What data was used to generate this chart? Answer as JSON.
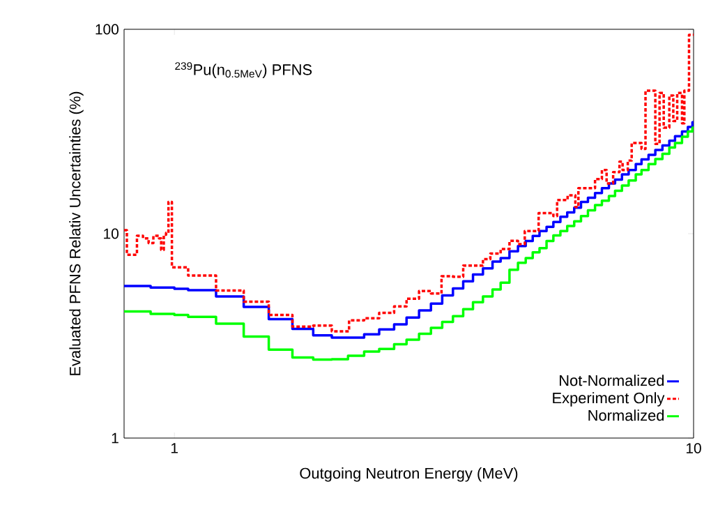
{
  "chart_data": {
    "type": "step",
    "xlabel": "Outgoing Neutron Energy (MeV)",
    "ylabel": "Evaluated PFNS Relativ Uncertainties (%)",
    "annotations": [
      "$^{239}$Pu(n$_{0.5MeV}$) PFNS"
    ],
    "log": "xy",
    "xlim": [
      0.8,
      10
    ],
    "ylim": [
      1,
      100
    ],
    "xticks": [
      1,
      10
    ],
    "yticks": [
      1,
      10,
      100
    ],
    "grid": false,
    "legend": "bottom right",
    "marker": "none",
    "series": [
      {
        "name": "Not-Normalized",
        "color": "#0000ff",
        "line_style": "solid",
        "x": [
          0.8,
          0.9,
          1.0,
          1.063,
          1.203,
          1.36,
          1.52,
          1.688,
          1.851,
          2.01,
          2.32,
          2.48,
          2.65,
          2.8,
          2.96,
          3.12,
          3.28,
          3.44,
          3.6,
          3.76,
          3.93,
          4.1,
          4.25,
          4.42,
          4.59,
          4.75,
          4.9,
          5.05,
          5.21,
          5.37,
          5.54,
          5.71,
          5.89,
          6.07,
          6.26,
          6.46,
          6.66,
          6.87,
          7.06,
          7.28,
          7.5,
          7.74,
          7.94,
          8.19,
          8.44,
          8.71,
          8.98,
          9.21,
          9.5,
          9.75,
          9.95,
          10
        ],
        "values": [
          5.55,
          5.45,
          5.38,
          5.29,
          4.93,
          4.38,
          3.82,
          3.42,
          3.18,
          3.1,
          3.22,
          3.4,
          3.6,
          3.89,
          4.21,
          4.55,
          4.99,
          5.4,
          5.85,
          6.32,
          6.76,
          7.3,
          7.6,
          8.2,
          8.7,
          9.2,
          9.75,
          10.3,
          10.8,
          11.4,
          12.1,
          12.7,
          13.4,
          14.3,
          15.0,
          15.8,
          16.7,
          17.6,
          18.4,
          19.5,
          20.5,
          21.9,
          23.1,
          24.3,
          25.7,
          27.0,
          28.5,
          30.0,
          31.6,
          33.3,
          35.1,
          35.1
        ]
      },
      {
        "name": "Experiment Only",
        "color": "#ff0000",
        "line_style": "dashed",
        "x": [
          0.8,
          0.81,
          0.847,
          0.87,
          0.892,
          0.911,
          0.934,
          0.943,
          0.954,
          0.964,
          0.974,
          0.989,
          1.063,
          1.203,
          1.36,
          1.52,
          1.688,
          1.851,
          2.01,
          2.17,
          2.32,
          2.48,
          2.65,
          2.8,
          2.96,
          3.12,
          3.27,
          3.44,
          3.6,
          3.76,
          3.93,
          4.06,
          4.25,
          4.42,
          4.59,
          4.73,
          5.03,
          5.37,
          5.46,
          5.72,
          5.92,
          6.0,
          6.46,
          6.66,
          6.8,
          7.0,
          7.2,
          7.3,
          7.47,
          7.6,
          7.94,
          8.08,
          8.44,
          8.6,
          8.76,
          8.98,
          9.14,
          9.3,
          9.5,
          9.6,
          9.8,
          10
        ],
        "values": [
          10.4,
          7.89,
          9.76,
          9.49,
          9.0,
          9.76,
          9.49,
          8.33,
          9.89,
          10.1,
          14.3,
          6.84,
          6.24,
          5.27,
          4.65,
          4.0,
          3.51,
          3.55,
          3.33,
          3.77,
          3.86,
          4.1,
          4.41,
          4.81,
          5.24,
          5.1,
          6.19,
          6.16,
          6.98,
          6.98,
          7.51,
          8.0,
          8.42,
          9.22,
          8.88,
          10.3,
          12.6,
          12.2,
          14.6,
          15.4,
          13.5,
          16.7,
          18.5,
          20.5,
          17.6,
          20.0,
          22.5,
          20.5,
          22.8,
          27.8,
          26.0,
          50.1,
          27.5,
          48.8,
          33.0,
          47.4,
          35.6,
          48.8,
          34.7,
          50.1,
          94,
          94
        ]
      },
      {
        "name": "Normalized",
        "color": "#00ff00",
        "line_style": "solid",
        "x": [
          0.8,
          0.9,
          1.0,
          1.063,
          1.203,
          1.36,
          1.52,
          1.688,
          1.851,
          2.01,
          2.16,
          2.32,
          2.48,
          2.65,
          2.8,
          2.96,
          3.12,
          3.28,
          3.44,
          3.6,
          3.76,
          3.93,
          4.1,
          4.25,
          4.42,
          4.59,
          4.75,
          4.9,
          5.05,
          5.21,
          5.37,
          5.54,
          5.71,
          5.89,
          6.07,
          6.26,
          6.46,
          6.66,
          6.87,
          7.06,
          7.28,
          7.5,
          7.74,
          7.94,
          8.19,
          8.44,
          8.71,
          8.98,
          9.21,
          9.5,
          9.75,
          9.95,
          10
        ],
        "values": [
          4.16,
          4.05,
          4.0,
          3.92,
          3.63,
          3.14,
          2.71,
          2.48,
          2.42,
          2.43,
          2.53,
          2.65,
          2.73,
          2.88,
          3.03,
          3.24,
          3.46,
          3.7,
          3.95,
          4.27,
          4.62,
          4.93,
          5.33,
          5.76,
          6.66,
          7.2,
          7.6,
          8.1,
          8.5,
          9.2,
          9.8,
          10.3,
          10.9,
          11.5,
          12.2,
          13.0,
          13.8,
          14.5,
          15.3,
          16.2,
          17.2,
          18.2,
          19.5,
          20.5,
          21.9,
          23.2,
          24.6,
          26.4,
          27.8,
          29.8,
          31.6,
          33.0,
          33.0
        ]
      }
    ]
  }
}
